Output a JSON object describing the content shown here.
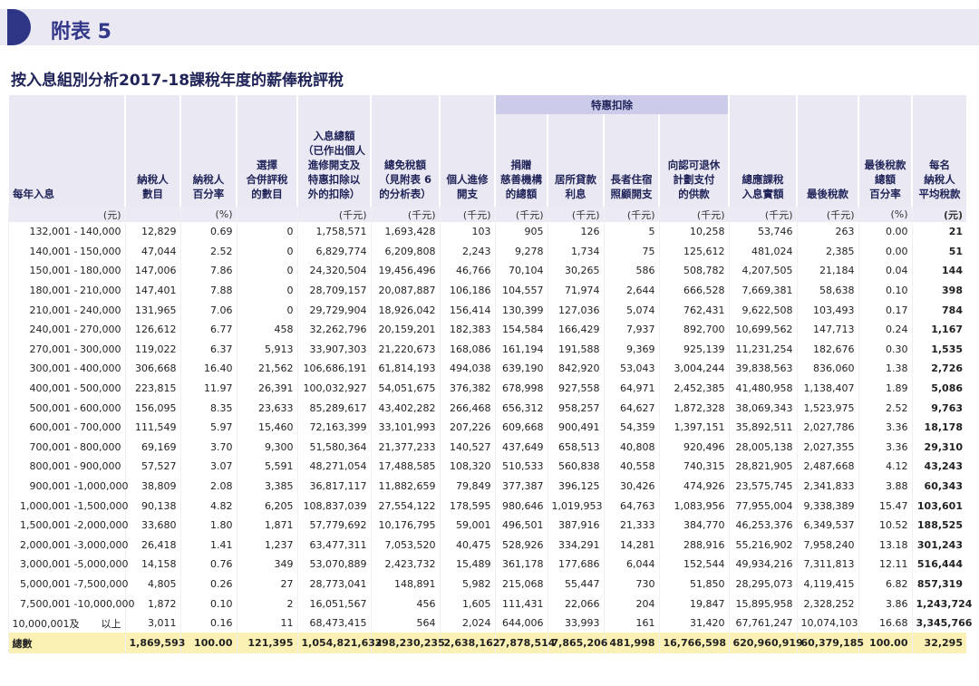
{
  "header": {
    "title": "附表 5",
    "subtitle": "按入息組別分析2017-18課稅年度的薪俸稅評稅"
  },
  "table": {
    "group_header": "特惠扣除",
    "columns": [
      {
        "label": "每年入息",
        "unit": "(元)"
      },
      {
        "label": "納稅人\n數目"
      },
      {
        "label": "納稅人\n百分率",
        "unit": "(%)"
      },
      {
        "label": "選擇\n合併評稅\n的數目"
      },
      {
        "label": "入息總額\n（已作出個人\n進修開支及\n特惠扣除以\n外的扣除）",
        "unit": "(千元)"
      },
      {
        "label": "總免稅額\n（見附表 6\n的分析表）",
        "unit": "(千元)"
      },
      {
        "label": "個人進修\n開支",
        "unit": "(千元)"
      },
      {
        "label": "捐贈\n慈善機構\n的總額",
        "unit": "(千元)"
      },
      {
        "label": "居所貸款\n利息",
        "unit": "(千元)"
      },
      {
        "label": "長者住宿\n照顧開支",
        "unit": "(千元)"
      },
      {
        "label": "向認可退休\n計劃支付\n的供款",
        "unit": "(千元)"
      },
      {
        "label": "總應課稅\n入息實額",
        "unit": "(千元)"
      },
      {
        "label": "最後稅款",
        "unit": "(千元)"
      },
      {
        "label": "最後稅款\n總額\n百分率",
        "unit": "(%)"
      },
      {
        "label": "每名\n納稅人\n平均稅款",
        "unit": "(元)"
      }
    ],
    "rows": [
      {
        "from": "132,001 -",
        "to": "140,000",
        "cells": [
          "12,829",
          "0.69",
          "0",
          "1,758,571",
          "1,693,428",
          "103",
          "905",
          "126",
          "5",
          "10,258",
          "53,746",
          "263",
          "0.00",
          "21"
        ]
      },
      {
        "from": "140,001 -",
        "to": "150,000",
        "cells": [
          "47,044",
          "2.52",
          "0",
          "6,829,774",
          "6,209,808",
          "2,243",
          "9,278",
          "1,734",
          "75",
          "125,612",
          "481,024",
          "2,385",
          "0.00",
          "51"
        ]
      },
      {
        "from": "150,001 -",
        "to": "180,000",
        "cells": [
          "147,006",
          "7.86",
          "0",
          "24,320,504",
          "19,456,496",
          "46,766",
          "70,104",
          "30,265",
          "586",
          "508,782",
          "4,207,505",
          "21,184",
          "0.04",
          "144"
        ]
      },
      {
        "from": "180,001 -",
        "to": "210,000",
        "cells": [
          "147,401",
          "7.88",
          "0",
          "28,709,157",
          "20,087,887",
          "106,186",
          "104,557",
          "71,974",
          "2,644",
          "666,528",
          "7,669,381",
          "58,638",
          "0.10",
          "398"
        ]
      },
      {
        "from": "210,001 -",
        "to": "240,000",
        "cells": [
          "131,965",
          "7.06",
          "0",
          "29,729,904",
          "18,926,042",
          "156,414",
          "130,399",
          "127,036",
          "5,074",
          "762,431",
          "9,622,508",
          "103,493",
          "0.17",
          "784"
        ]
      },
      {
        "from": "240,001 -",
        "to": "270,000",
        "cells": [
          "126,612",
          "6.77",
          "458",
          "32,262,796",
          "20,159,201",
          "182,383",
          "154,584",
          "166,429",
          "7,937",
          "892,700",
          "10,699,562",
          "147,713",
          "0.24",
          "1,167"
        ]
      },
      {
        "from": "270,001 -",
        "to": "300,000",
        "cells": [
          "119,022",
          "6.37",
          "5,913",
          "33,907,303",
          "21,220,673",
          "168,086",
          "161,194",
          "191,588",
          "9,369",
          "925,139",
          "11,231,254",
          "182,676",
          "0.30",
          "1,535"
        ]
      },
      {
        "from": "300,001 -",
        "to": "400,000",
        "cells": [
          "306,668",
          "16.40",
          "21,562",
          "106,686,191",
          "61,814,193",
          "494,038",
          "639,190",
          "842,920",
          "53,043",
          "3,004,244",
          "39,838,563",
          "836,060",
          "1.38",
          "2,726"
        ]
      },
      {
        "from": "400,001 -",
        "to": "500,000",
        "cells": [
          "223,815",
          "11.97",
          "26,391",
          "100,032,927",
          "54,051,675",
          "376,382",
          "678,998",
          "927,558",
          "64,971",
          "2,452,385",
          "41,480,958",
          "1,138,407",
          "1.89",
          "5,086"
        ]
      },
      {
        "from": "500,001 -",
        "to": "600,000",
        "cells": [
          "156,095",
          "8.35",
          "23,633",
          "85,289,617",
          "43,402,282",
          "266,468",
          "656,312",
          "958,257",
          "64,627",
          "1,872,328",
          "38,069,343",
          "1,523,975",
          "2.52",
          "9,763"
        ]
      },
      {
        "from": "600,001 -",
        "to": "700,000",
        "cells": [
          "111,549",
          "5.97",
          "15,460",
          "72,163,399",
          "33,101,993",
          "207,226",
          "609,668",
          "900,491",
          "54,359",
          "1,397,151",
          "35,892,511",
          "2,027,786",
          "3.36",
          "18,178"
        ]
      },
      {
        "from": "700,001 -",
        "to": "800,000",
        "cells": [
          "69,169",
          "3.70",
          "9,300",
          "51,580,364",
          "21,377,233",
          "140,527",
          "437,649",
          "658,513",
          "40,808",
          "920,496",
          "28,005,138",
          "2,027,355",
          "3.36",
          "29,310"
        ]
      },
      {
        "from": "800,001 -",
        "to": "900,000",
        "cells": [
          "57,527",
          "3.07",
          "5,591",
          "48,271,054",
          "17,488,585",
          "108,320",
          "510,533",
          "560,838",
          "40,558",
          "740,315",
          "28,821,905",
          "2,487,668",
          "4.12",
          "43,243"
        ]
      },
      {
        "from": "900,001 -",
        "to": "1,000,000",
        "cells": [
          "38,809",
          "2.08",
          "3,385",
          "36,817,117",
          "11,882,659",
          "79,849",
          "377,387",
          "396,125",
          "30,426",
          "474,926",
          "23,575,745",
          "2,341,833",
          "3.88",
          "60,343"
        ]
      },
      {
        "from": "1,000,001 -",
        "to": "1,500,000",
        "cells": [
          "90,138",
          "4.82",
          "6,205",
          "108,837,039",
          "27,554,122",
          "178,595",
          "980,646",
          "1,019,953",
          "64,763",
          "1,083,956",
          "77,955,004",
          "9,338,389",
          "15.47",
          "103,601"
        ]
      },
      {
        "from": "1,500,001 -",
        "to": "2,000,000",
        "cells": [
          "33,680",
          "1.80",
          "1,871",
          "57,779,692",
          "10,176,795",
          "59,001",
          "496,501",
          "387,916",
          "21,333",
          "384,770",
          "46,253,376",
          "6,349,537",
          "10.52",
          "188,525"
        ]
      },
      {
        "from": "2,000,001 -",
        "to": "3,000,000",
        "cells": [
          "26,418",
          "1.41",
          "1,237",
          "63,477,311",
          "7,053,520",
          "40,475",
          "528,926",
          "334,291",
          "14,281",
          "288,916",
          "55,216,902",
          "7,958,240",
          "13.18",
          "301,243"
        ]
      },
      {
        "from": "3,000,001 -",
        "to": "5,000,000",
        "cells": [
          "14,158",
          "0.76",
          "349",
          "53,070,889",
          "2,423,732",
          "15,489",
          "361,178",
          "177,686",
          "6,044",
          "152,544",
          "49,934,216",
          "7,311,813",
          "12.11",
          "516,444"
        ]
      },
      {
        "from": "5,000,001 -",
        "to": "7,500,000",
        "cells": [
          "4,805",
          "0.26",
          "27",
          "28,773,041",
          "148,891",
          "5,982",
          "215,068",
          "55,447",
          "730",
          "51,850",
          "28,295,073",
          "4,119,415",
          "6.82",
          "857,319"
        ]
      },
      {
        "from": "7,500,001 -",
        "to": "10,000,000",
        "cells": [
          "1,872",
          "0.10",
          "2",
          "16,051,567",
          "456",
          "1,605",
          "111,431",
          "22,066",
          "204",
          "19,847",
          "15,895,958",
          "2,328,252",
          "3.86",
          "1,243,724"
        ]
      },
      {
        "from": "10,000,001及",
        "to": "以上",
        "cells": [
          "3,011",
          "0.16",
          "11",
          "68,473,415",
          "564",
          "2,024",
          "644,006",
          "33,993",
          "161",
          "31,420",
          "67,761,247",
          "10,074,103",
          "16.68",
          "3,345,766"
        ]
      }
    ],
    "total": {
      "label": "總數",
      "cells": [
        "1,869,593",
        "100.00",
        "121,395",
        "1,054,821,632",
        "398,230,235",
        "2,638,162",
        "7,878,514",
        "7,865,206",
        "481,998",
        "16,766,598",
        "620,960,919",
        "60,379,185",
        "100.00",
        "32,295"
      ]
    }
  }
}
